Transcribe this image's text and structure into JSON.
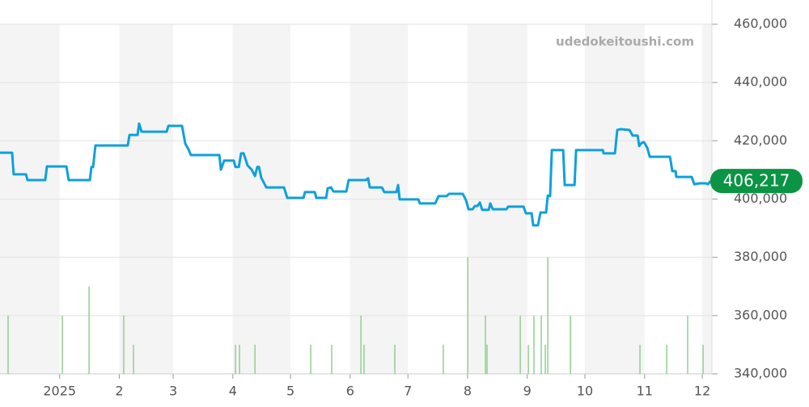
{
  "chart_data": {
    "type": "line",
    "watermark": "udedokeitoushi.com",
    "xlim": [
      0,
      370
    ],
    "xticks": [
      {
        "value": 31,
        "label": "2025"
      },
      {
        "value": 62,
        "label": "2"
      },
      {
        "value": 90,
        "label": "3"
      },
      {
        "value": 121,
        "label": "4"
      },
      {
        "value": 151,
        "label": "5"
      },
      {
        "value": 182,
        "label": "6"
      },
      {
        "value": 212,
        "label": "7"
      },
      {
        "value": 243,
        "label": "8"
      },
      {
        "value": 274,
        "label": "9"
      },
      {
        "value": 304,
        "label": "10"
      },
      {
        "value": 335,
        "label": "11"
      },
      {
        "value": 365,
        "label": "12"
      }
    ],
    "ylim": [
      340000,
      460000
    ],
    "yticks": [
      {
        "value": 340000,
        "label": "340,000"
      },
      {
        "value": 360000,
        "label": "360,000"
      },
      {
        "value": 380000,
        "label": "380,000"
      },
      {
        "value": 400000,
        "label": "400,000"
      },
      {
        "value": 420000,
        "label": "420,000"
      },
      {
        "value": 440000,
        "label": "440,000"
      },
      {
        "value": 460000,
        "label": "460,000"
      }
    ],
    "grid": true,
    "current": {
      "value": 406217,
      "label": "406,217",
      "color": "#0a9444"
    },
    "series": [
      {
        "type": "line",
        "color": "#0fa0dc",
        "x": [
          0,
          6.3,
          7.1,
          13.5,
          14.3,
          23.5,
          24.4,
          34.5,
          35.7,
          46.7,
          47.5,
          48.4,
          49.6,
          66.4,
          67.3,
          71.5,
          72.3,
          73.6,
          86.6,
          87.5,
          94.6,
          96.3,
          98.0,
          99.2,
          114.0,
          114.8,
          116.5,
          121.5,
          122.4,
          124.1,
          125.3,
          126.6,
          128.7,
          130.8,
          132.5,
          133.7,
          134.6,
          135.8,
          138.4,
          147.6,
          149.3,
          157.7,
          158.5,
          163.6,
          164.4,
          169.5,
          170.3,
          172.0,
          173.3,
          180.0,
          181.2,
          190.1,
          191.3,
          192.2,
          198.5,
          199.7,
          206.0,
          206.9,
          207.7,
          217.4,
          218.2,
          226.2,
          227.9,
          232.1,
          233.4,
          240.5,
          242.2,
          243.5,
          245.6,
          246.8,
          248.1,
          249.4,
          250.6,
          254.0,
          254.8,
          256.1,
          263.2,
          264.1,
          272.1,
          273.3,
          276.3,
          277.1,
          279.6,
          280.9,
          283.8,
          284.7,
          285.9,
          286.8,
          292.7,
          293.5,
          298.6,
          299.4,
          313.3,
          313.7,
          319.6,
          320.8,
          322.5,
          327.2,
          328.8,
          331.4,
          332.2,
          333.5,
          334.7,
          336.4,
          337.7,
          348.2,
          349.4,
          351.1,
          351.5,
          359.5,
          360.8,
          363.7,
          366.7,
          368.0,
          369.2
        ],
        "values": [
          415900,
          415900,
          408500,
          408500,
          406500,
          406500,
          411200,
          411200,
          406500,
          406500,
          411000,
          411000,
          418400,
          418400,
          422000,
          422000,
          425900,
          423100,
          423100,
          425100,
          425100,
          419000,
          417000,
          415100,
          415100,
          410100,
          413200,
          413200,
          411000,
          411000,
          415700,
          415700,
          411500,
          410100,
          407900,
          411000,
          411000,
          407300,
          404000,
          404000,
          400400,
          400400,
          402400,
          402400,
          400400,
          400400,
          403700,
          404000,
          402600,
          402600,
          406500,
          406500,
          407100,
          404000,
          404000,
          402400,
          402400,
          404800,
          399900,
          399900,
          398500,
          398500,
          401000,
          401000,
          401800,
          401800,
          399600,
          396500,
          396500,
          397600,
          397600,
          398800,
          396300,
          396300,
          398500,
          396500,
          396500,
          397400,
          397400,
          395100,
          395100,
          391000,
          391000,
          395400,
          395400,
          401200,
          401000,
          416800,
          416800,
          404800,
          404800,
          416800,
          416800,
          415700,
          415700,
          423700,
          424000,
          423700,
          421800,
          421800,
          418200,
          419300,
          419500,
          417600,
          414500,
          414500,
          409600,
          409600,
          407600,
          407600,
          405100,
          405400,
          405400,
          405100,
          406217
        ]
      },
      {
        "type": "bar",
        "color": "#8fd08f",
        "x": [
          4.2,
          32.4,
          46.3,
          64.3,
          69.4,
          122.4,
          124.5,
          132.5,
          161.5,
          172.4,
          187.6,
          189.2,
          205.2,
          230.4,
          243.1,
          252.3,
          253.1,
          270.4,
          274.6,
          277.5,
          281.3,
          283.4,
          284.7,
          296.5,
          332.6,
          346.5,
          357.4,
          365.4
        ],
        "values": [
          360000,
          360000,
          370000,
          360000,
          350000,
          350000,
          350000,
          350000,
          350000,
          350000,
          360000,
          350000,
          350000,
          350000,
          380000,
          360000,
          350000,
          360000,
          350000,
          360000,
          360000,
          350000,
          380000,
          360000,
          350000,
          350000,
          360000,
          350000
        ]
      }
    ]
  }
}
